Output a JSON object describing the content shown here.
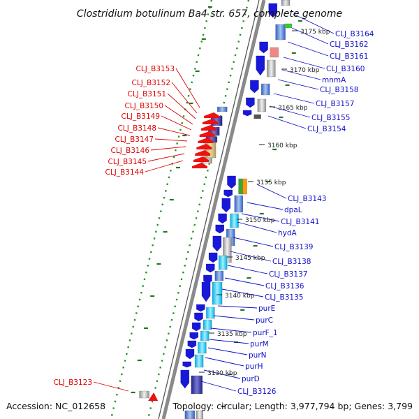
{
  "title": "Clostridium botulinum Ba4 str. 657, complete genome",
  "accession": "Accession: NC_012658",
  "topology": "Topology: circular; Length: 3,977,794 bp; Genes: 3,799",
  "colors": {
    "forward_label": "#1010c8",
    "reverse_label": "#e00000",
    "backbone": "#8a8a8a",
    "guide": "#229922"
  },
  "kbp_ticks": [
    "3175 kbp",
    "3170 kbp",
    "3165 kbp",
    "3160 kbp",
    "3155 kbp",
    "3150 kbp",
    "3145 kbp",
    "3140 kbp",
    "3135 kbp",
    "3130 kbp"
  ],
  "forward_labels": [
    "CLJ_B3164",
    "CLJ_B3162",
    "CLJ_B3161",
    "CLJ_B3160",
    "mnmA",
    "CLJ_B3158",
    "CLJ_B3157",
    "CLJ_B3155",
    "CLJ_B3154",
    "CLJ_B3143",
    "dpaL",
    "CLJ_B3141",
    "hydA",
    "CLJ_B3139",
    "CLJ_B3138",
    "CLJ_B3137",
    "CLJ_B3136",
    "CLJ_B3135",
    "purE",
    "purC",
    "purF_1",
    "purM",
    "purN",
    "purH",
    "purD",
    "CLJ_B3126"
  ],
  "reverse_labels": [
    "CLJ_B3153",
    "CLJ_B3152",
    "CLJ_B3151",
    "CLJ_B3150",
    "CLJ_B3149",
    "CLJ_B3148",
    "CLJ_B3147",
    "CLJ_B3146",
    "CLJ_B3145",
    "CLJ_B3144",
    "CLJ_B3123"
  ]
}
